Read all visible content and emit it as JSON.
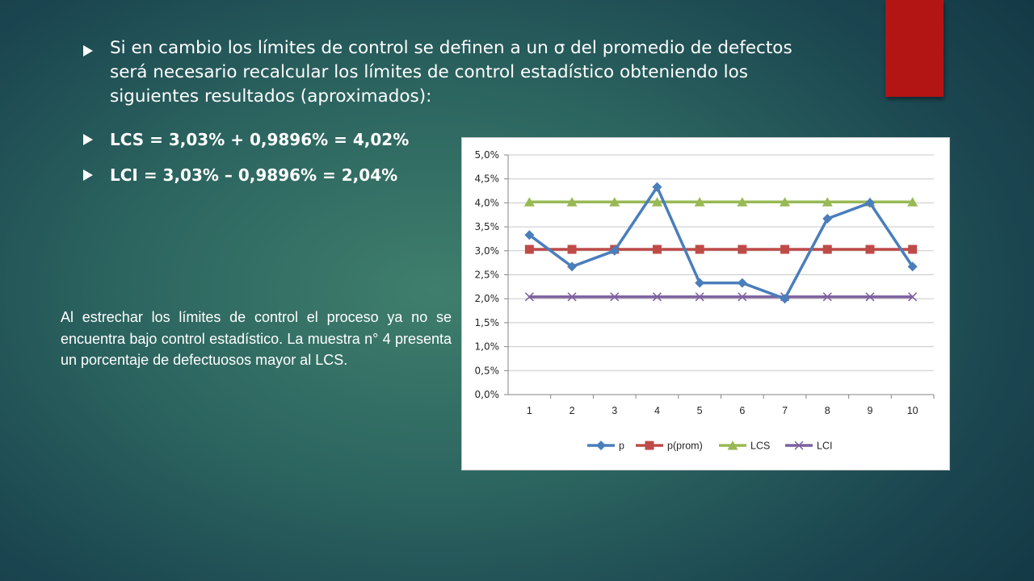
{
  "slide": {
    "bullets": [
      {
        "text": "Si en cambio los límites de control se definen a un σ del promedio de defectos será necesario recalcular los límites de control estadístico obteniendo los siguientes resultados (aproximados):"
      },
      {
        "text": "LCS = 3,03% + 0,9896% = 4,02%"
      },
      {
        "text": "LCI = 3,03% – 0,9896% = 2,04%"
      }
    ],
    "note": "Al estrechar los límites de control el proceso ya no se encuentra bajo control estadístico. La muestra n° 4 presenta un porcentaje de defectuosos mayor al LCS."
  },
  "colors": {
    "background": "#2c6560",
    "accent": "#b31515",
    "p": "#4a7ebb",
    "p_prom": "#be4b48",
    "lcs": "#98b954",
    "lci": "#7d60a0"
  },
  "chart_data": {
    "type": "line",
    "categories": [
      "1",
      "2",
      "3",
      "4",
      "5",
      "6",
      "7",
      "8",
      "9",
      "10"
    ],
    "ylim": [
      0,
      5
    ],
    "ytick_labels": [
      "0,0%",
      "0,5%",
      "1,0%",
      "1,5%",
      "2,0%",
      "2,5%",
      "3,0%",
      "3,5%",
      "4,0%",
      "4,5%",
      "5,0%"
    ],
    "grid": true,
    "legend": "bottom",
    "series": [
      {
        "name": "p",
        "marker": "diamond",
        "values": [
          3.33,
          2.67,
          3.0,
          4.33,
          2.33,
          2.33,
          2.0,
          3.67,
          4.0,
          2.67
        ]
      },
      {
        "name": "p(prom)",
        "marker": "square",
        "values": [
          3.03,
          3.03,
          3.03,
          3.03,
          3.03,
          3.03,
          3.03,
          3.03,
          3.03,
          3.03
        ]
      },
      {
        "name": "LCS",
        "marker": "triangle",
        "values": [
          4.02,
          4.02,
          4.02,
          4.02,
          4.02,
          4.02,
          4.02,
          4.02,
          4.02,
          4.02
        ]
      },
      {
        "name": "LCI",
        "marker": "x",
        "values": [
          2.04,
          2.04,
          2.04,
          2.04,
          2.04,
          2.04,
          2.04,
          2.04,
          2.04,
          2.04
        ]
      }
    ]
  }
}
